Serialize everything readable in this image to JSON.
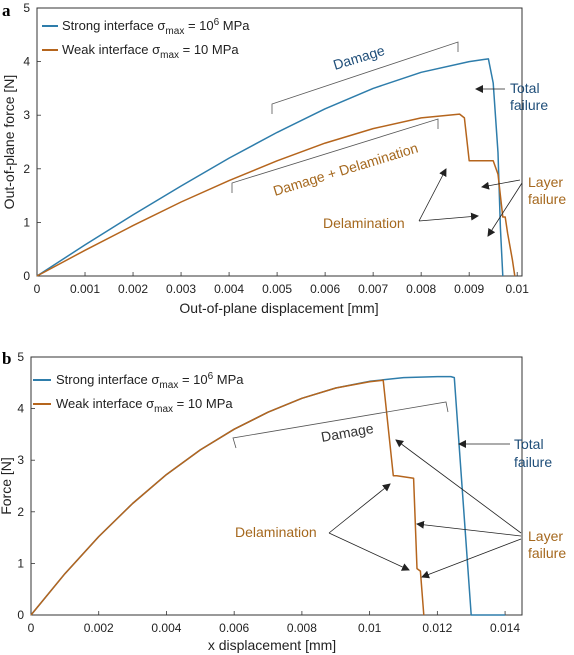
{
  "colors": {
    "strong": "#2e7dab",
    "weak": "#b5651d",
    "annotation_blue": "#1f4e79",
    "annotation_orange": "#a5681e",
    "axis": "#333333"
  },
  "chart_data": [
    {
      "type": "line",
      "panel_label": "a",
      "xlabel": "Out-of-plane displacement [mm]",
      "ylabel": "Out-of-plane force [N]",
      "xlim": [
        0,
        0.0101
      ],
      "ylim": [
        0,
        5
      ],
      "xticks": [
        0,
        0.001,
        0.002,
        0.003,
        0.004,
        0.005,
        0.006,
        0.007,
        0.008,
        0.009,
        0.01
      ],
      "xtick_labels": [
        "0",
        "0.001",
        "0.002",
        "0.003",
        "0.004",
        "0.005",
        "0.006",
        "0.007",
        "0.008",
        "0.009",
        "0.01"
      ],
      "yticks": [
        0,
        1,
        2,
        3,
        4,
        5
      ],
      "ytick_labels": [
        "0",
        "1",
        "2",
        "3",
        "4",
        "5"
      ],
      "legend_position": "top-left",
      "grid": false,
      "series": [
        {
          "name_prefix": "Strong interface σ",
          "name_sub": "max",
          "name_mid": " = 10",
          "name_sup": "6",
          "name_suffix": " MPa",
          "color_key": "strong",
          "x": [
            0,
            0.001,
            0.002,
            0.003,
            0.004,
            0.005,
            0.006,
            0.007,
            0.008,
            0.009,
            0.0093,
            0.0094,
            0.0095,
            0.0096,
            0.00965,
            0.0097
          ],
          "y": [
            0,
            0.58,
            1.14,
            1.68,
            2.2,
            2.68,
            3.12,
            3.5,
            3.8,
            4.0,
            4.04,
            4.05,
            3.6,
            2.3,
            0.9,
            0
          ]
        },
        {
          "name_prefix": "Weak interface σ",
          "name_sub": "max",
          "name_mid": " = 10 MPa",
          "name_sup": "",
          "name_suffix": "",
          "color_key": "weak",
          "x": [
            0,
            0.001,
            0.002,
            0.003,
            0.004,
            0.005,
            0.006,
            0.007,
            0.008,
            0.0088,
            0.0089,
            0.009,
            0.0095,
            0.0096,
            0.0097,
            0.00975,
            0.0098,
            0.0099,
            0.00995
          ],
          "y": [
            0,
            0.48,
            0.94,
            1.38,
            1.78,
            2.15,
            2.48,
            2.75,
            2.95,
            3.02,
            2.95,
            2.15,
            2.15,
            1.9,
            1.1,
            1.1,
            0.8,
            0.3,
            0
          ]
        }
      ],
      "annotations": {
        "damage": "Damage",
        "damage_delamination": "Damage + Delamination",
        "total_failure_line1": "Total",
        "total_failure_line2": "failure",
        "layer_failure_line1": "Layer",
        "layer_failure_line2": "failure",
        "delamination": "Delamination"
      }
    },
    {
      "type": "line",
      "panel_label": "b",
      "xlabel": "x displacement [mm]",
      "ylabel": "Force [N]",
      "xlim": [
        0,
        0.0145
      ],
      "ylim": [
        0,
        5
      ],
      "xticks": [
        0,
        0.002,
        0.004,
        0.006,
        0.008,
        0.01,
        0.012,
        0.014
      ],
      "xtick_labels": [
        "0",
        "0.002",
        "0.004",
        "0.006",
        "0.008",
        "0.01",
        "0.012",
        "0.014"
      ],
      "yticks": [
        0,
        1,
        2,
        3,
        4,
        5
      ],
      "ytick_labels": [
        "0",
        "1",
        "2",
        "3",
        "4",
        "5"
      ],
      "legend_position": "top-left",
      "grid": false,
      "series": [
        {
          "name_prefix": "Strong interface σ",
          "name_sub": "max",
          "name_mid": " = 10",
          "name_sup": "6",
          "name_suffix": " MPa",
          "color_key": "strong",
          "x": [
            0,
            0.001,
            0.002,
            0.003,
            0.004,
            0.005,
            0.006,
            0.007,
            0.008,
            0.009,
            0.01,
            0.011,
            0.012,
            0.0124,
            0.0125,
            0.013,
            0.014
          ],
          "y": [
            0,
            0.8,
            1.52,
            2.16,
            2.72,
            3.2,
            3.6,
            3.93,
            4.2,
            4.4,
            4.53,
            4.6,
            4.62,
            4.62,
            4.6,
            0,
            0
          ]
        },
        {
          "name_prefix": "Weak interface σ",
          "name_sub": "max",
          "name_mid": " = 10 MPa",
          "name_sup": "",
          "name_suffix": "",
          "color_key": "weak",
          "x": [
            0,
            0.001,
            0.002,
            0.003,
            0.004,
            0.005,
            0.006,
            0.007,
            0.008,
            0.009,
            0.01,
            0.0104,
            0.0107,
            0.0108,
            0.0113,
            0.0114,
            0.0115,
            0.0116
          ],
          "y": [
            0,
            0.8,
            1.52,
            2.16,
            2.72,
            3.2,
            3.6,
            3.93,
            4.2,
            4.4,
            4.52,
            4.55,
            2.7,
            2.7,
            2.65,
            0.9,
            0.85,
            0
          ]
        }
      ],
      "annotations": {
        "damage": "Damage",
        "total_failure_line1": "Total",
        "total_failure_line2": "failure",
        "layer_failure_line1": "Layer",
        "layer_failure_line2": "failure",
        "delamination": "Delamination"
      }
    }
  ]
}
